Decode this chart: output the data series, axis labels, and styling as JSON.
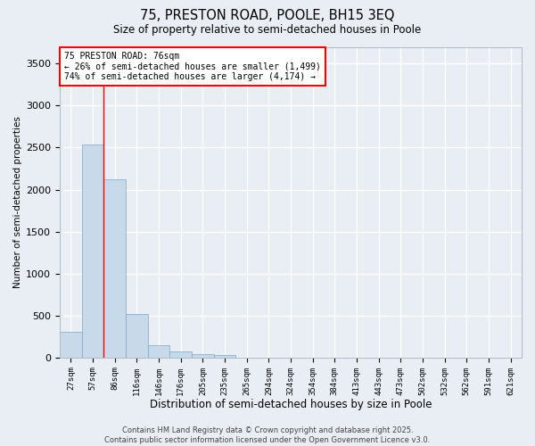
{
  "title": "75, PRESTON ROAD, POOLE, BH15 3EQ",
  "subtitle": "Size of property relative to semi-detached houses in Poole",
  "xlabel": "Distribution of semi-detached houses by size in Poole",
  "ylabel": "Number of semi-detached properties",
  "categories": [
    "27sqm",
    "57sqm",
    "86sqm",
    "116sqm",
    "146sqm",
    "176sqm",
    "205sqm",
    "235sqm",
    "265sqm",
    "294sqm",
    "324sqm",
    "354sqm",
    "384sqm",
    "413sqm",
    "443sqm",
    "473sqm",
    "502sqm",
    "532sqm",
    "562sqm",
    "591sqm",
    "621sqm"
  ],
  "values": [
    310,
    2540,
    2120,
    520,
    150,
    70,
    40,
    30,
    0,
    0,
    0,
    0,
    0,
    0,
    0,
    0,
    0,
    0,
    0,
    0,
    0
  ],
  "bar_color": "#c8daea",
  "bar_edge_color": "#7aa8c8",
  "annotation_text": "75 PRESTON ROAD: 76sqm\n← 26% of semi-detached houses are smaller (1,499)\n74% of semi-detached houses are larger (4,174) →",
  "annotation_box_color": "white",
  "annotation_box_edge": "red",
  "vline_x": 1.5,
  "vline_color": "red",
  "ylim": [
    0,
    3700
  ],
  "yticks": [
    0,
    500,
    1000,
    1500,
    2000,
    2500,
    3000,
    3500
  ],
  "bg_color": "#e8eef4",
  "grid_color": "white",
  "footer_line1": "Contains HM Land Registry data © Crown copyright and database right 2025.",
  "footer_line2": "Contains public sector information licensed under the Open Government Licence v3.0."
}
